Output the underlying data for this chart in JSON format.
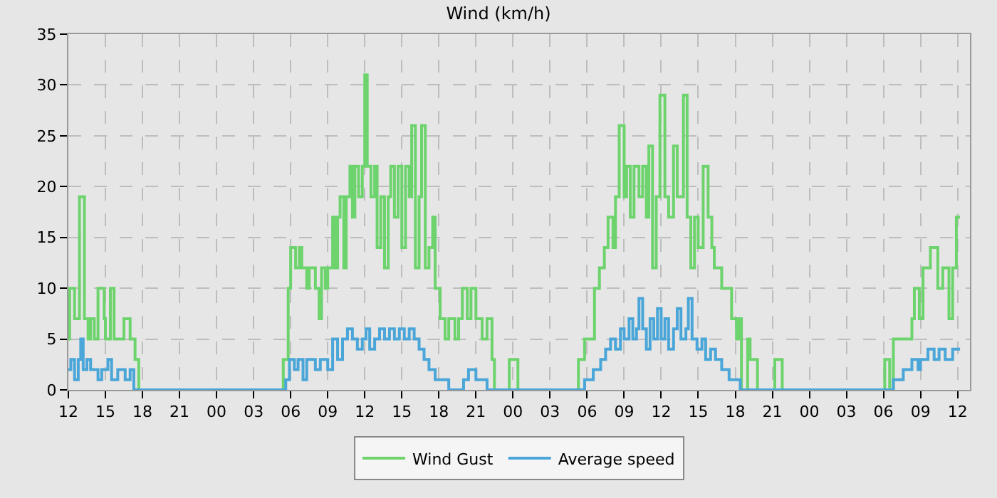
{
  "chart_data": {
    "type": "step",
    "title": "Wind (km/h)",
    "xlim": [
      12,
      85
    ],
    "ylim": [
      0,
      35
    ],
    "xticks": [
      {
        "value": 12,
        "label": "12"
      },
      {
        "value": 15,
        "label": "15"
      },
      {
        "value": 18,
        "label": "18"
      },
      {
        "value": 21,
        "label": "21"
      },
      {
        "value": 24,
        "label": "00"
      },
      {
        "value": 27,
        "label": "03"
      },
      {
        "value": 30,
        "label": "06"
      },
      {
        "value": 33,
        "label": "09"
      },
      {
        "value": 36,
        "label": "12"
      },
      {
        "value": 39,
        "label": "15"
      },
      {
        "value": 42,
        "label": "18"
      },
      {
        "value": 45,
        "label": "21"
      },
      {
        "value": 48,
        "label": "00"
      },
      {
        "value": 51,
        "label": "03"
      },
      {
        "value": 54,
        "label": "06"
      },
      {
        "value": 57,
        "label": "09"
      },
      {
        "value": 60,
        "label": "12"
      },
      {
        "value": 63,
        "label": "15"
      },
      {
        "value": 66,
        "label": "18"
      },
      {
        "value": 69,
        "label": "21"
      },
      {
        "value": 72,
        "label": "00"
      },
      {
        "value": 75,
        "label": "03"
      },
      {
        "value": 78,
        "label": "06"
      },
      {
        "value": 81,
        "label": "09"
      },
      {
        "value": 84,
        "label": "12"
      }
    ],
    "yticks": [
      0,
      5,
      10,
      15,
      20,
      25,
      30,
      35
    ],
    "grid": true,
    "legend": "bottom",
    "line_style": "solid",
    "marker": "none",
    "series": [
      {
        "name": "Wind Gust",
        "color": "#6dd36d",
        "x": [
          12.0,
          12.1,
          12.5,
          12.9,
          13.3,
          13.6,
          13.8,
          14.1,
          14.4,
          14.9,
          15.0,
          15.4,
          15.7,
          16.5,
          17.0,
          17.4,
          17.7,
          29.4,
          29.8,
          30.0,
          30.4,
          30.7,
          30.9,
          31.3,
          31.5,
          32.0,
          32.3,
          32.5,
          32.8,
          33.0,
          33.4,
          33.6,
          33.8,
          34.0,
          34.3,
          34.5,
          34.8,
          35.0,
          35.2,
          35.5,
          35.8,
          36.0,
          36.2,
          36.5,
          36.8,
          37.0,
          37.3,
          37.6,
          37.9,
          38.1,
          38.4,
          38.7,
          39.0,
          39.3,
          39.6,
          39.8,
          40.1,
          40.4,
          40.6,
          40.9,
          41.2,
          41.5,
          41.7,
          42.1,
          42.5,
          42.8,
          43.3,
          43.6,
          43.9,
          44.3,
          44.6,
          45.0,
          45.5,
          45.9,
          46.3,
          46.5,
          47.7,
          48.4,
          53.3,
          53.8,
          54.6,
          55.0,
          55.4,
          55.7,
          56.1,
          56.3,
          56.6,
          57.0,
          57.2,
          57.5,
          57.8,
          58.2,
          58.5,
          58.8,
          59.0,
          59.3,
          59.6,
          59.9,
          60.3,
          60.6,
          61.0,
          61.3,
          61.8,
          62.1,
          62.4,
          62.7,
          63.0,
          63.4,
          63.8,
          64.1,
          64.3,
          64.9,
          65.3,
          65.7,
          66.1,
          66.3,
          66.5,
          67.0,
          67.2,
          67.8,
          69.2,
          69.8,
          78.1,
          78.5,
          78.8,
          80.3,
          80.5,
          80.9,
          81.2,
          81.8,
          82.4,
          82.8,
          83.3,
          83.6,
          83.9,
          84.2
        ],
        "values": [
          5,
          10,
          7,
          19,
          7,
          5,
          7,
          5,
          10,
          7,
          5,
          10,
          5,
          7,
          5,
          3,
          0,
          3,
          10,
          14,
          12,
          14,
          12,
          10,
          12,
          10,
          7,
          12,
          10,
          12,
          17,
          12,
          17,
          19,
          12,
          19,
          22,
          17,
          22,
          19,
          22,
          31,
          22,
          19,
          22,
          14,
          19,
          12,
          19,
          22,
          17,
          22,
          14,
          22,
          19,
          26,
          12,
          19,
          26,
          12,
          14,
          17,
          10,
          7,
          5,
          7,
          5,
          7,
          10,
          7,
          10,
          7,
          5,
          7,
          3,
          0,
          3,
          0,
          3,
          5,
          10,
          12,
          14,
          17,
          14,
          19,
          26,
          19,
          22,
          17,
          22,
          19,
          22,
          17,
          24,
          12,
          19,
          29,
          19,
          17,
          24,
          19,
          29,
          17,
          12,
          17,
          14,
          22,
          17,
          14,
          12,
          10,
          10,
          7,
          5,
          7,
          0,
          5,
          3,
          0,
          3,
          0,
          3,
          0,
          5,
          7,
          10,
          7,
          12,
          14,
          10,
          12,
          7,
          12,
          17,
          17
        ]
      },
      {
        "name": "Average speed",
        "color": "#4aa6d8",
        "x": [
          12.0,
          12.2,
          12.5,
          12.8,
          13.0,
          13.2,
          13.5,
          13.8,
          14.4,
          14.7,
          15.2,
          15.5,
          16.0,
          16.6,
          17.0,
          17.3,
          29.6,
          29.9,
          30.3,
          30.6,
          31.0,
          31.3,
          32.0,
          32.4,
          33.0,
          33.4,
          33.8,
          34.2,
          34.6,
          35.0,
          35.4,
          35.8,
          36.1,
          36.4,
          36.8,
          37.2,
          37.6,
          38.0,
          38.4,
          38.8,
          39.2,
          39.6,
          40.0,
          40.4,
          40.8,
          41.2,
          41.7,
          42.8,
          44.0,
          44.4,
          45.0,
          45.9,
          53.8,
          54.5,
          55.1,
          55.5,
          55.9,
          56.3,
          56.7,
          57.0,
          57.4,
          57.7,
          58.0,
          58.2,
          58.5,
          58.8,
          59.1,
          59.4,
          59.7,
          60.0,
          60.3,
          60.6,
          61.0,
          61.3,
          61.6,
          62.0,
          62.2,
          62.5,
          62.9,
          63.3,
          63.6,
          64.0,
          64.4,
          64.9,
          65.5,
          66.4,
          78.8,
          79.6,
          80.3,
          80.8,
          81.0,
          81.6,
          82.1,
          82.5,
          83.0,
          83.6,
          84.2
        ],
        "values": [
          2,
          3,
          1,
          3,
          5,
          2,
          3,
          2,
          1,
          2,
          3,
          1,
          2,
          1,
          2,
          0,
          1,
          3,
          2,
          3,
          1,
          3,
          2,
          3,
          2,
          5,
          3,
          5,
          6,
          5,
          4,
          5,
          6,
          4,
          5,
          6,
          5,
          6,
          5,
          6,
          5,
          6,
          5,
          4,
          3,
          2,
          1,
          0,
          1,
          2,
          1,
          0,
          1,
          2,
          3,
          4,
          5,
          4,
          6,
          5,
          7,
          5,
          6,
          9,
          6,
          4,
          7,
          5,
          8,
          5,
          7,
          4,
          6,
          8,
          5,
          6,
          9,
          5,
          4,
          5,
          3,
          4,
          3,
          2,
          1,
          0,
          1,
          2,
          3,
          2,
          3,
          4,
          3,
          4,
          3,
          4,
          4
        ]
      }
    ]
  }
}
